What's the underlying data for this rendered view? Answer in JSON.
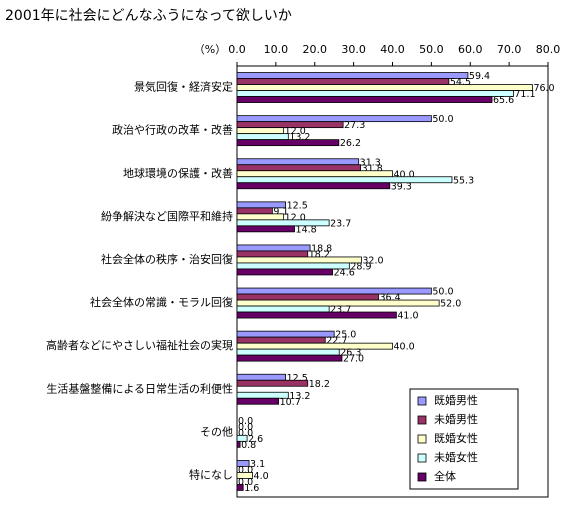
{
  "chart_data": {
    "type": "hbar",
    "title": "2001年に社会にどんなふうになって欲しいか",
    "x_label": "（%）",
    "categories": [
      "景気回復・経済安定",
      "政治や行政の改革・改善",
      "地球環境の保護・改善",
      "紛争解決など国際平和維持",
      "社会全体の秩序・治安回復",
      "社会全体の常識・モラル回復",
      "高齢者などにやさしい福祉社会の実現",
      "生活基盤整備による日常生活の利便性",
      "その他",
      "特になし"
    ],
    "series": [
      {
        "name": "既婚男性",
        "color": "#9999ff",
        "values": [
          59.4,
          50.0,
          31.3,
          12.5,
          18.8,
          50.0,
          25.0,
          12.5,
          0.0,
          3.1
        ],
        "value_labels": [
          "59.4",
          "50.0",
          "31.3",
          "12.5",
          "18.8",
          "50.0",
          "25.0",
          "12.5",
          "0.0",
          "3.1"
        ]
      },
      {
        "name": "未婚男性",
        "color": "#993366",
        "values": [
          54.5,
          27.3,
          31.8,
          9.1,
          18.2,
          36.4,
          22.7,
          18.2,
          0.0,
          0.0
        ],
        "value_labels": [
          "54.5",
          "27.3",
          "31.8",
          "9.1",
          "18.2",
          "36.4",
          "22.7",
          "18.2",
          "0.0",
          "0.0"
        ]
      },
      {
        "name": "既婚女性",
        "color": "#ffffcc",
        "values": [
          76.0,
          12.0,
          40.0,
          12.0,
          32.0,
          52.0,
          40.0,
          null,
          0.0,
          4.0
        ],
        "value_labels": [
          "76.0",
          "12.0",
          "40.0",
          "12.0",
          "32.0",
          "52.0",
          "40.0",
          null,
          "0.0",
          "4.0"
        ]
      },
      {
        "name": "未婚女性",
        "color": "#ccffff",
        "values": [
          71.1,
          13.2,
          55.3,
          23.7,
          28.9,
          23.7,
          26.3,
          13.2,
          2.6,
          0.0
        ],
        "value_labels": [
          "71.1",
          "13.2",
          "55.3",
          "23.7",
          "28.9",
          "23.7",
          "26.3",
          "13.2",
          "2.6",
          "0.0"
        ]
      },
      {
        "name": "全体",
        "color": "#660066",
        "values": [
          65.6,
          26.2,
          39.3,
          14.8,
          24.6,
          41.0,
          27.0,
          10.7,
          0.8,
          1.6
        ],
        "value_labels": [
          "65.6",
          "26.2",
          "39.3",
          "14.8",
          "24.6",
          "41.0",
          "27.0",
          "10.7",
          "0.8",
          "1.6"
        ]
      }
    ],
    "xlim": [
      0,
      80
    ],
    "xticks": [
      {
        "value": 0,
        "label": "0.0"
      },
      {
        "value": 10,
        "label": "10.0"
      },
      {
        "value": 20,
        "label": "20.0"
      },
      {
        "value": 30,
        "label": "30.0"
      },
      {
        "value": 40,
        "label": "40.0"
      },
      {
        "value": 50,
        "label": "50.0"
      },
      {
        "value": 60,
        "label": "60.0"
      },
      {
        "value": 70,
        "label": "70.0"
      },
      {
        "value": 80,
        "label": "80.0"
      }
    ],
    "legend": "lower right"
  }
}
